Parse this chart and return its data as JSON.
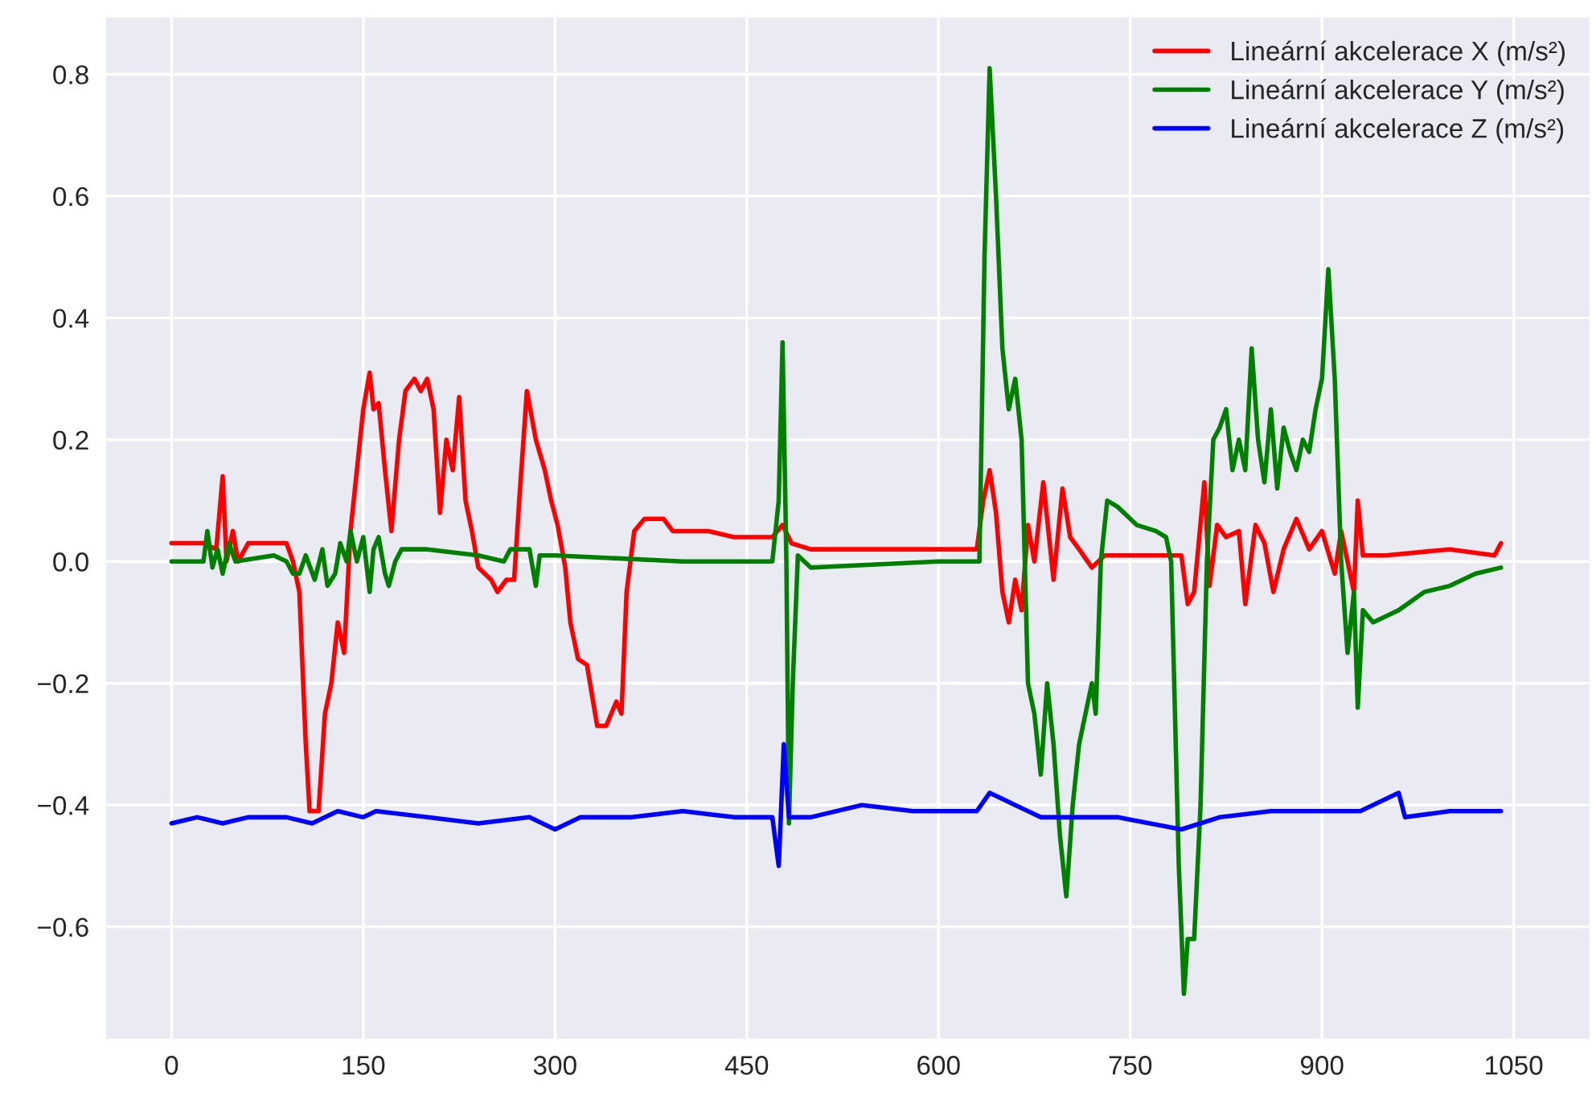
{
  "chart_data": {
    "type": "line",
    "xlim": [
      -52,
      1110
    ],
    "ylim": [
      -0.785,
      0.895
    ],
    "xticks": [
      0,
      150,
      300,
      450,
      600,
      750,
      900,
      1050
    ],
    "yticks": [
      {
        "value": -0.6,
        "label": "−0.6"
      },
      {
        "value": -0.4,
        "label": "−0.4"
      },
      {
        "value": -0.2,
        "label": "−0.2"
      },
      {
        "value": 0,
        "label": "0.0"
      },
      0.2,
      0.4,
      0.6,
      0.8
    ],
    "grid": true,
    "legend": "top right",
    "series": [
      {
        "name": "Lineární akcelerace X (m/s²)",
        "color": "#ff0000",
        "x": [
          0,
          25,
          35,
          40,
          43,
          48,
          52,
          60,
          90,
          95,
          100,
          105,
          108,
          115,
          120,
          125,
          130,
          135,
          140,
          145,
          150,
          155,
          158,
          162,
          167,
          172,
          178,
          183,
          190,
          195,
          200,
          205,
          210,
          215,
          220,
          225,
          230,
          235,
          240,
          250,
          255,
          262,
          268,
          272,
          278,
          285,
          292,
          297,
          302,
          308,
          312,
          318,
          325,
          333,
          340,
          348,
          352,
          356,
          362,
          370,
          385,
          392,
          420,
          440,
          470,
          478,
          485,
          500,
          550,
          630,
          635,
          640,
          645,
          650,
          655,
          660,
          665,
          670,
          675,
          682,
          690,
          697,
          703,
          710,
          720,
          730,
          750,
          790,
          795,
          800,
          808,
          812,
          818,
          825,
          835,
          840,
          848,
          855,
          862,
          870,
          880,
          890,
          900,
          910,
          915,
          920,
          925,
          928,
          932,
          950,
          1000,
          1035,
          1040
        ],
        "values": [
          0.03,
          0.03,
          0.02,
          0.14,
          0.0,
          0.05,
          0.0,
          0.03,
          0.03,
          0.0,
          -0.05,
          -0.3,
          -0.41,
          -0.41,
          -0.25,
          -0.2,
          -0.1,
          -0.15,
          0.05,
          0.15,
          0.25,
          0.31,
          0.25,
          0.26,
          0.15,
          0.05,
          0.2,
          0.28,
          0.3,
          0.28,
          0.3,
          0.25,
          0.08,
          0.2,
          0.15,
          0.27,
          0.1,
          0.05,
          -0.01,
          -0.03,
          -0.05,
          -0.03,
          -0.03,
          0.1,
          0.28,
          0.2,
          0.15,
          0.1,
          0.06,
          -0.01,
          -0.1,
          -0.16,
          -0.17,
          -0.27,
          -0.27,
          -0.23,
          -0.25,
          -0.05,
          0.05,
          0.07,
          0.07,
          0.05,
          0.05,
          0.04,
          0.04,
          0.06,
          0.03,
          0.02,
          0.02,
          0.02,
          0.1,
          0.15,
          0.08,
          -0.05,
          -0.1,
          -0.03,
          -0.08,
          0.06,
          0.0,
          0.13,
          -0.03,
          0.12,
          0.04,
          0.02,
          -0.01,
          0.01,
          0.01,
          0.01,
          -0.07,
          -0.05,
          0.13,
          -0.04,
          0.06,
          0.04,
          0.05,
          -0.07,
          0.06,
          0.03,
          -0.05,
          0.02,
          0.07,
          0.02,
          0.05,
          -0.02,
          0.05,
          0.0,
          -0.05,
          0.1,
          0.01,
          0.01,
          0.02,
          0.01,
          0.03
        ]
      },
      {
        "name": "Lineární akcelerace Y (m/s²)",
        "color": "#008000",
        "x": [
          0,
          25,
          28,
          32,
          36,
          40,
          45,
          50,
          80,
          90,
          95,
          100,
          105,
          112,
          118,
          122,
          128,
          132,
          137,
          140,
          145,
          150,
          155,
          158,
          162,
          167,
          170,
          175,
          180,
          200,
          240,
          260,
          265,
          280,
          285,
          288,
          300,
          400,
          470,
          475,
          478,
          481,
          483,
          486,
          490,
          500,
          600,
          632,
          636,
          640,
          645,
          650,
          655,
          660,
          665,
          670,
          675,
          680,
          685,
          690,
          695,
          700,
          705,
          710,
          715,
          720,
          723,
          727,
          732,
          740,
          755,
          770,
          778,
          782,
          788,
          792,
          795,
          800,
          805,
          810,
          815,
          820,
          825,
          830,
          835,
          840,
          845,
          850,
          855,
          860,
          865,
          870,
          875,
          880,
          885,
          890,
          895,
          900,
          905,
          910,
          915,
          920,
          925,
          928,
          932,
          940,
          960,
          980,
          1000,
          1020,
          1040
        ],
        "values": [
          0.0,
          0.0,
          0.05,
          -0.01,
          0.02,
          -0.02,
          0.03,
          0.0,
          0.01,
          0.0,
          -0.02,
          -0.02,
          0.01,
          -0.03,
          0.02,
          -0.04,
          -0.02,
          0.03,
          0.0,
          0.05,
          0.0,
          0.04,
          -0.05,
          0.02,
          0.04,
          -0.02,
          -0.04,
          0.0,
          0.02,
          0.02,
          0.01,
          0.0,
          0.02,
          0.02,
          -0.04,
          0.01,
          0.01,
          0.0,
          0.0,
          0.1,
          0.36,
          0.0,
          -0.43,
          -0.2,
          0.01,
          -0.01,
          0.0,
          0.0,
          0.5,
          0.81,
          0.6,
          0.35,
          0.25,
          0.3,
          0.2,
          -0.2,
          -0.25,
          -0.35,
          -0.2,
          -0.3,
          -0.45,
          -0.55,
          -0.4,
          -0.3,
          -0.25,
          -0.2,
          -0.25,
          0.0,
          0.1,
          0.09,
          0.06,
          0.05,
          0.04,
          0.0,
          -0.5,
          -0.71,
          -0.62,
          -0.62,
          -0.4,
          0.0,
          0.2,
          0.22,
          0.25,
          0.15,
          0.2,
          0.15,
          0.35,
          0.2,
          0.13,
          0.25,
          0.12,
          0.22,
          0.18,
          0.15,
          0.2,
          0.18,
          0.25,
          0.3,
          0.48,
          0.3,
          0.0,
          -0.15,
          -0.05,
          -0.24,
          -0.08,
          -0.1,
          -0.08,
          -0.05,
          -0.04,
          -0.02,
          -0.01
        ]
      },
      {
        "name": "Lineární akcelerace Z (m/s²)",
        "color": "#0000ff",
        "x": [
          0,
          20,
          40,
          60,
          90,
          110,
          130,
          150,
          160,
          200,
          240,
          280,
          300,
          320,
          360,
          400,
          440,
          470,
          475,
          479,
          483,
          500,
          540,
          580,
          630,
          640,
          660,
          680,
          740,
          790,
          820,
          860,
          900,
          930,
          960,
          965,
          1000,
          1040
        ],
        "values": [
          -0.43,
          -0.42,
          -0.43,
          -0.42,
          -0.42,
          -0.43,
          -0.41,
          -0.42,
          -0.41,
          -0.42,
          -0.43,
          -0.42,
          -0.44,
          -0.42,
          -0.42,
          -0.41,
          -0.42,
          -0.42,
          -0.5,
          -0.3,
          -0.42,
          -0.42,
          -0.4,
          -0.41,
          -0.41,
          -0.38,
          -0.4,
          -0.42,
          -0.42,
          -0.44,
          -0.42,
          -0.41,
          -0.41,
          -0.41,
          -0.38,
          -0.42,
          -0.41,
          -0.41
        ]
      }
    ]
  }
}
